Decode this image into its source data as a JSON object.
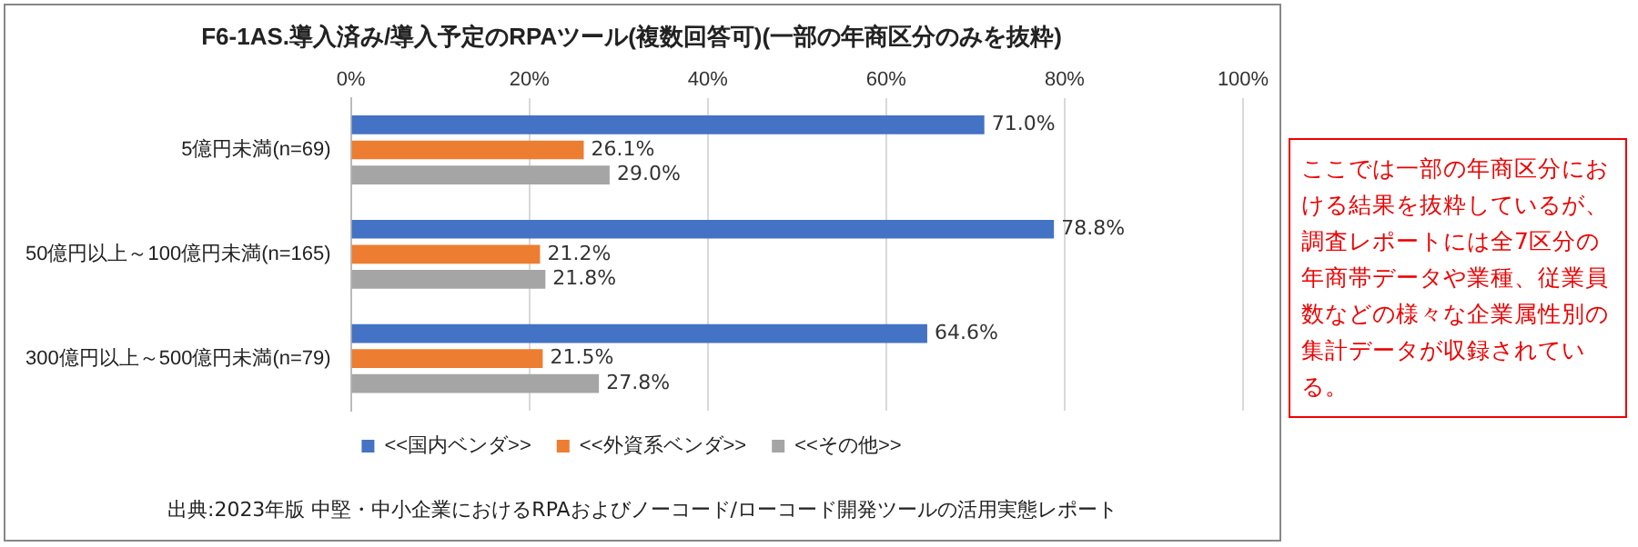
{
  "chart_data": {
    "type": "bar",
    "orientation": "horizontal",
    "title": "F6-1AS.導入済み/導入予定のRPAツール(複数回答可)(一部の年商区分のみを抜粋)",
    "categories": [
      "5億円未満(n=69)",
      "50億円以上～100億円未満(n=165)",
      "300億円以上～500億円未満(n=79)"
    ],
    "series": [
      {
        "name": "<<国内ベンダ>>",
        "color": "#4472c4",
        "values": [
          71.0,
          78.8,
          64.6
        ],
        "value_labels": [
          "71.0%",
          "78.8%",
          "64.6%"
        ]
      },
      {
        "name": "<<外資系ベンダ>>",
        "color": "#ed7d31",
        "values": [
          26.1,
          21.2,
          21.5
        ],
        "value_labels": [
          "26.1%",
          "21.2%",
          "21.5%"
        ]
      },
      {
        "name": "<<その他>>",
        "color": "#a5a5a5",
        "values": [
          29.0,
          21.8,
          27.8
        ],
        "value_labels": [
          "29.0%",
          "21.8%",
          "27.8%"
        ]
      }
    ],
    "xlim": [
      0,
      100
    ],
    "xticks": [
      {
        "value": 0,
        "label": "0%"
      },
      {
        "value": 20,
        "label": "20%"
      },
      {
        "value": 40,
        "label": "40%"
      },
      {
        "value": 60,
        "label": "60%"
      },
      {
        "value": 80,
        "label": "80%"
      },
      {
        "value": 100,
        "label": "100%"
      }
    ],
    "grid": "x",
    "legend": "bottom",
    "annotations": [
      "ここでは一部の年商区分における結果を抜粋しているが、調査レポートには全7区分の年商帯データや業種、従業員数などの様々な企業属性別の集計データが収録されている。",
      "出典:2023年版 中堅・中小企業におけるRPAおよびノーコード/ローコード開発ツールの活用実態レポート"
    ]
  }
}
